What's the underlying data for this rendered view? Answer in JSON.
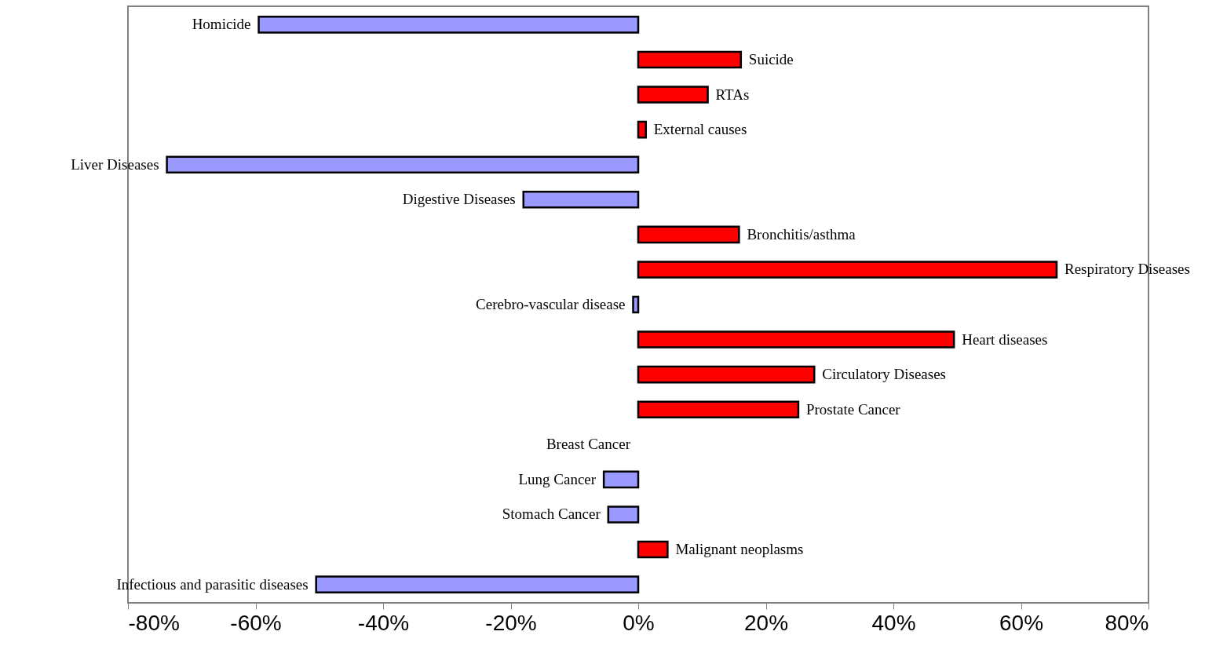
{
  "chart_data": {
    "type": "bar",
    "orientation": "horizontal",
    "categories": [
      "Homicide",
      "Suicide",
      "RTAs",
      "External causes",
      "Liver Diseases",
      "Digestive Diseases",
      "Bronchitis/asthma",
      "Respiratory Diseases",
      "Cerebro-vascular disease",
      "Heart diseases",
      "Circulatory Diseases",
      "Prostate Cancer",
      "Breast Cancer",
      "Lung Cancer",
      "Stomach Cancer",
      "Malignant neoplasms",
      "Infectious and parasitic diseases"
    ],
    "values": [
      -59.5,
      16.1,
      10.9,
      1.2,
      -73.9,
      -18,
      15.8,
      65.6,
      -0.8,
      49.5,
      27.6,
      25.1,
      0,
      -5.4,
      -4.7,
      4.6,
      -50.5
    ],
    "colors": [
      "#9999ff",
      "#ff0000",
      "#ff0000",
      "#ff0000",
      "#9999ff",
      "#9999ff",
      "#ff0000",
      "#ff0000",
      "#9999ff",
      "#ff0000",
      "#ff0000",
      "#ff0000",
      "#ff0000",
      "#9999ff",
      "#9999ff",
      "#ff0000",
      "#9999ff"
    ],
    "xlim": [
      -80,
      80
    ],
    "xticks": [
      {
        "value": -80,
        "label": "-80%"
      },
      {
        "value": -60,
        "label": "-60%"
      },
      {
        "value": -40,
        "label": "-40%"
      },
      {
        "value": -20,
        "label": "-20%"
      },
      {
        "value": 0,
        "label": "0%"
      },
      {
        "value": 20,
        "label": "20%"
      },
      {
        "value": 40,
        "label": "40%"
      },
      {
        "value": 60,
        "label": "60%"
      },
      {
        "value": 80,
        "label": "80%"
      }
    ],
    "grid": false
  }
}
